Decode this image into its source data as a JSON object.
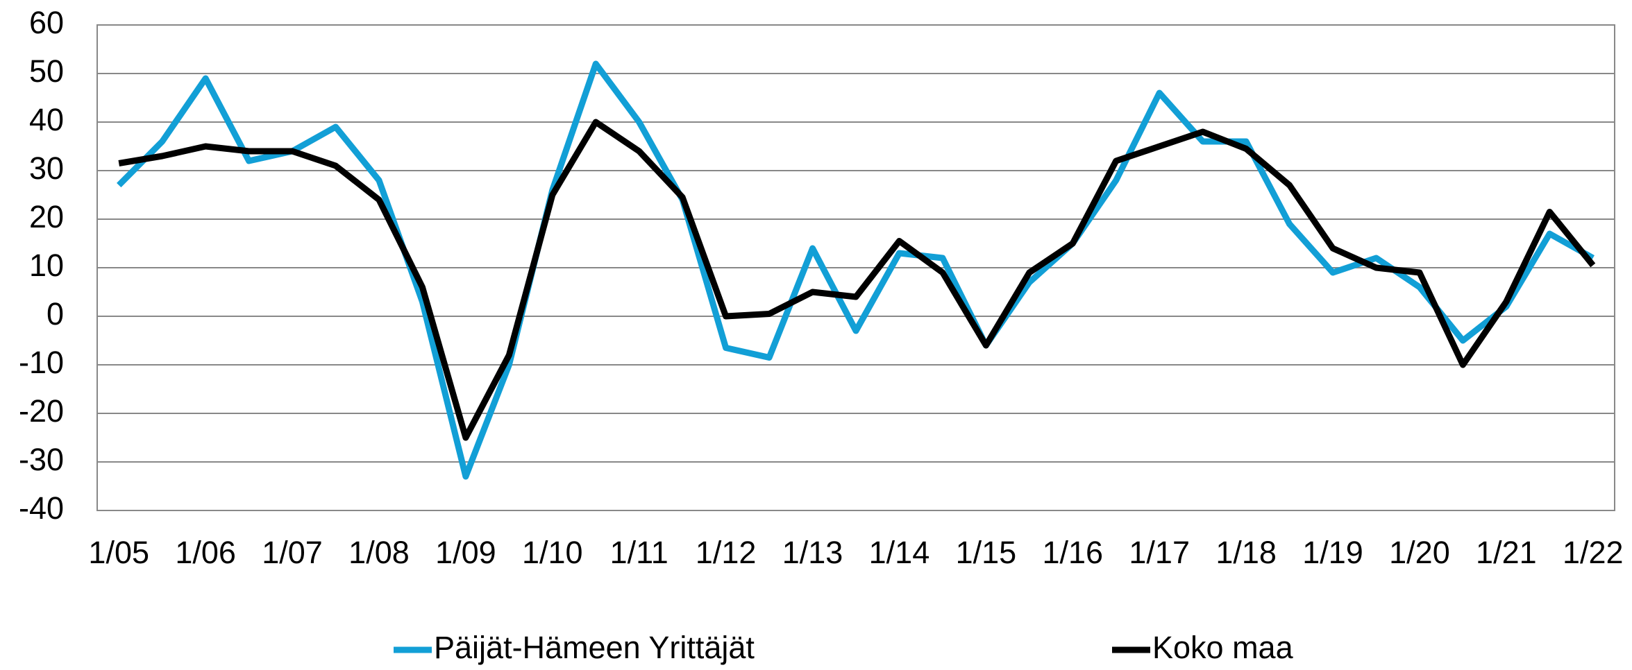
{
  "chart_data": {
    "type": "line",
    "categories": [
      "1/05",
      null,
      "1/06",
      null,
      "1/07",
      null,
      "1/08",
      null,
      "1/09",
      null,
      "1/10",
      null,
      "1/11",
      null,
      "1/12",
      null,
      "1/13",
      null,
      "1/14",
      null,
      "1/15",
      null,
      "1/16",
      null,
      "1/17",
      null,
      "1/18",
      null,
      "1/19",
      null,
      "1/20",
      null,
      "1/21",
      null,
      "1/22"
    ],
    "series": [
      {
        "name": "Päijät-Hämeen Yrittäjät",
        "color": "#129fd6",
        "values": [
          27,
          36,
          49,
          32,
          34,
          39,
          28,
          3,
          -33,
          -10,
          26,
          52,
          40,
          24,
          -6.5,
          -8.5,
          14,
          -3,
          13,
          12,
          -6,
          7,
          15,
          28,
          46,
          36,
          36,
          19,
          9,
          12,
          6,
          -5,
          2,
          17,
          12
        ]
      },
      {
        "name": "Koko maa",
        "color": "#000000",
        "values": [
          31.5,
          33,
          35,
          34,
          34,
          31,
          24,
          6,
          -25,
          -8,
          25,
          40,
          34,
          24.5,
          0,
          0.5,
          5,
          4,
          15.5,
          9,
          -6,
          9,
          15,
          32,
          35,
          38,
          34.5,
          27,
          14,
          10,
          9,
          -10,
          3,
          21.5,
          10.5
        ]
      }
    ],
    "ylim": [
      -40,
      60
    ],
    "yticks": [
      -40,
      -30,
      -20,
      -10,
      0,
      10,
      20,
      30,
      40,
      50,
      60
    ],
    "grid": true
  }
}
